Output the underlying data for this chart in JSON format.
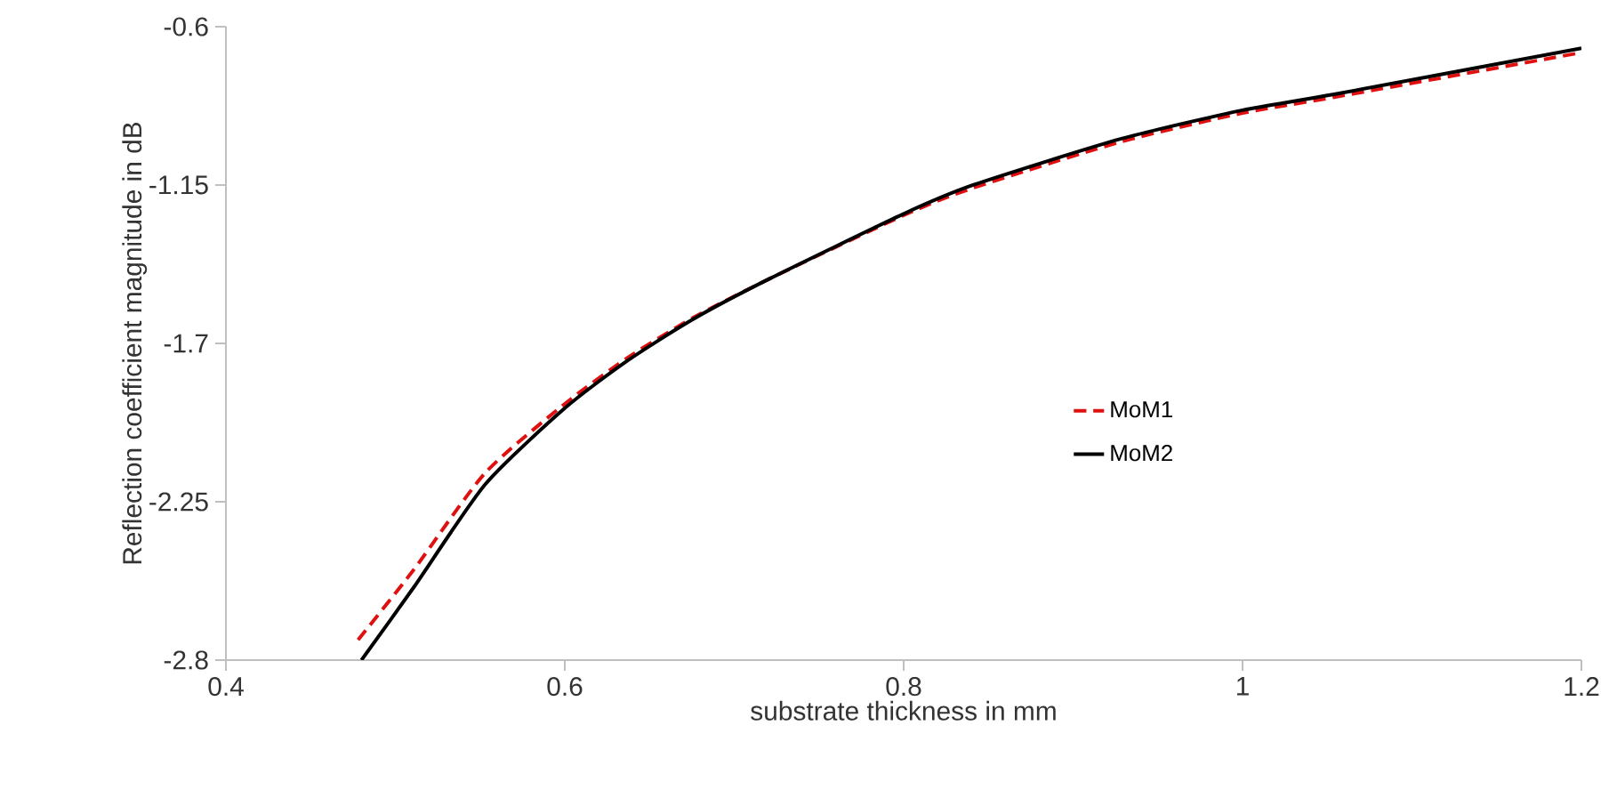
{
  "chart_data": {
    "type": "line",
    "xlabel": "substrate thickness in mm",
    "ylabel": "Reflection coefficient magnitude in dB",
    "xlim": [
      0.4,
      1.2
    ],
    "xticks": [
      0.4,
      0.6,
      0.8,
      1,
      1.2
    ],
    "ylim": [
      -2.8,
      -0.6
    ],
    "yticks": [
      -2.8,
      -2.25,
      -1.7,
      -1.15,
      -0.6
    ],
    "grid": false,
    "legend": "right",
    "marker": "none",
    "series": [
      {
        "name": "MoM1",
        "color": "#e01010",
        "line_style": "dashed",
        "x": [
          0.478,
          0.511,
          0.553,
          0.6,
          0.637,
          0.676,
          0.721,
          0.8,
          0.841,
          0.928,
          1.0,
          1.054,
          1.2
        ],
        "values": [
          -2.73,
          -2.485,
          -2.15,
          -1.91,
          -1.75,
          -1.61,
          -1.475,
          -1.255,
          -1.16,
          -1.0,
          -0.9,
          -0.845,
          -0.69
        ]
      },
      {
        "name": "MoM2",
        "color": "#000000",
        "line_style": "solid",
        "x": [
          0.48,
          0.511,
          0.553,
          0.6,
          0.637,
          0.676,
          0.721,
          0.8,
          0.841,
          0.928,
          1.0,
          1.054,
          1.2
        ],
        "values": [
          -2.8,
          -2.546,
          -2.19,
          -1.925,
          -1.76,
          -1.615,
          -1.475,
          -1.25,
          -1.15,
          -0.99,
          -0.89,
          -0.835,
          -0.675
        ]
      }
    ]
  }
}
